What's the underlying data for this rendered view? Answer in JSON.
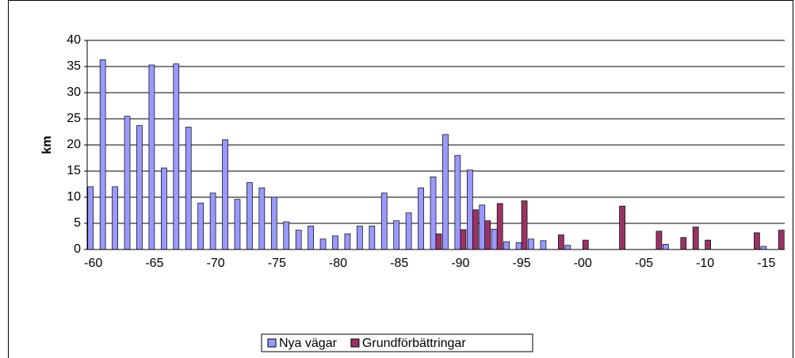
{
  "chart_data": {
    "type": "bar",
    "y_label": "km",
    "categories": [
      "-60",
      null,
      null,
      null,
      null,
      "-65",
      null,
      null,
      null,
      null,
      "-70",
      null,
      null,
      null,
      null,
      "-75",
      null,
      null,
      null,
      null,
      "-80",
      null,
      null,
      null,
      null,
      "-85",
      null,
      null,
      null,
      null,
      "-90",
      null,
      null,
      null,
      null,
      "-95",
      null,
      null,
      null,
      null,
      "-00",
      null,
      null,
      null,
      null,
      "-05",
      null,
      null,
      null,
      null,
      "-10",
      null,
      null,
      null,
      null,
      "-15",
      null
    ],
    "series": [
      {
        "name": "Nya vägar",
        "color": "#9999ff",
        "values": [
          12,
          36.3,
          12,
          25.5,
          23.7,
          35.3,
          15.6,
          35.5,
          23.4,
          8.9,
          10.8,
          21,
          9.6,
          12.8,
          11.8,
          10,
          5.3,
          3.7,
          4.5,
          2,
          2.6,
          3,
          4.5,
          4.5,
          10.8,
          5.5,
          7,
          11.8,
          13.9,
          22,
          18,
          15.2,
          8.5,
          3.9,
          1.5,
          1.3,
          2,
          1.7,
          0,
          0.8,
          0,
          0,
          0,
          0,
          0,
          0,
          0,
          1,
          0,
          0,
          0,
          0,
          0,
          0,
          0,
          0.6,
          0
        ]
      },
      {
        "name": "Grundförbättringar",
        "color": "#993366",
        "values": [
          0,
          0,
          0,
          0,
          0,
          0,
          0,
          0,
          0,
          0,
          0,
          0,
          0,
          0,
          0,
          0,
          0,
          0,
          0,
          0,
          0,
          0,
          0,
          0,
          0,
          0,
          0,
          0,
          3,
          0,
          3.8,
          7.6,
          5.5,
          8.8,
          0,
          9.3,
          0,
          0,
          2.8,
          0,
          1.8,
          0,
          0,
          8.3,
          0,
          0,
          3.5,
          0,
          2.3,
          4.3,
          1.8,
          0,
          0,
          0,
          3.2,
          0,
          3.7
        ]
      }
    ],
    "ylim": [
      0,
      40
    ],
    "yticks": [
      0,
      5,
      10,
      15,
      20,
      25,
      30,
      35,
      40
    ],
    "grid": true,
    "legend": "bottom"
  }
}
